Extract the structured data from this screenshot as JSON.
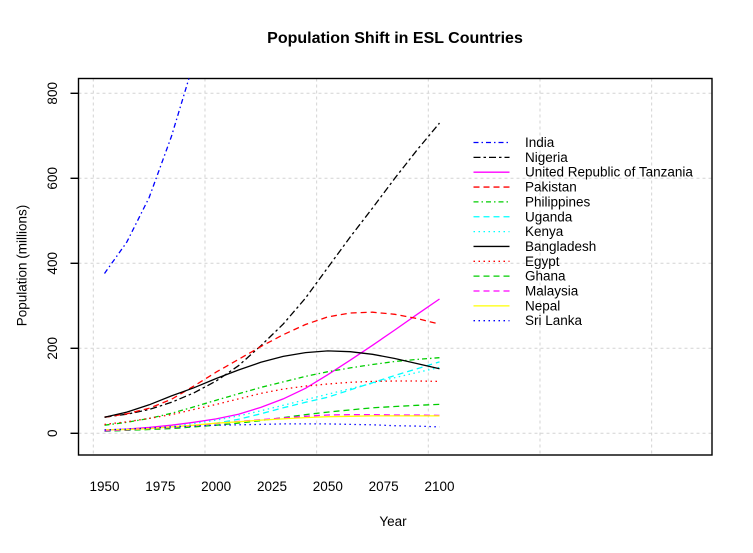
{
  "chart_data": {
    "type": "line",
    "title": "Population Shift in ESL Countries",
    "xlabel": "Year",
    "ylabel": "Population (millions)",
    "x_ticks": [
      1950,
      1975,
      2000,
      2025,
      2050,
      2075,
      2100
    ],
    "y_ticks": [
      0,
      200,
      400,
      600,
      800
    ],
    "xlim": [
      1950,
      2100
    ],
    "ylim": [
      0,
      830
    ],
    "grid": "lightgray-dashed",
    "legend_position": "right",
    "colors": {
      "blue": "#0000ff",
      "black": "#000000",
      "magenta": "#ff00ff",
      "red": "#ff0000",
      "green": "#00cd00",
      "cyan": "#00ffff",
      "yellow": "#ffff00"
    },
    "years": [
      1950,
      1960,
      1970,
      1980,
      1990,
      2000,
      2010,
      2020,
      2030,
      2040,
      2050,
      2060,
      2070,
      2080,
      2090,
      2100
    ],
    "series": [
      {
        "name": "India",
        "color": "#0000ff",
        "linetype": "dotdash",
        "values": [
          376,
          450,
          555,
          699,
          873,
          null,
          null,
          null,
          null,
          null,
          null,
          null,
          null,
          null,
          null,
          null
        ],
        "note": "line exits top of plot (~835M) around 1988"
      },
      {
        "name": "Nigeria",
        "color": "#000000",
        "linetype": "twodash",
        "values": [
          38,
          45,
          56,
          73,
          95,
          123,
          159,
          206,
          257,
          318,
          390,
          462,
          530,
          600,
          667,
          730
        ]
      },
      {
        "name": "United Republic of Tanzania",
        "color": "#ff00ff",
        "linetype": "solid",
        "values": [
          8,
          10,
          14,
          19,
          26,
          34,
          45,
          61,
          81,
          106,
          138,
          172,
          207,
          243,
          280,
          316
        ]
      },
      {
        "name": "Pakistan",
        "color": "#ff0000",
        "linetype": "dashed",
        "values": [
          38,
          46,
          59,
          80,
          111,
          144,
          174,
          204,
          232,
          256,
          274,
          283,
          285,
          280,
          270,
          257
        ]
      },
      {
        "name": "Philippines",
        "color": "#00cd00",
        "linetype": "dotdash",
        "values": [
          19,
          26,
          35,
          47,
          62,
          78,
          93,
          108,
          121,
          134,
          145,
          154,
          162,
          169,
          174,
          178
        ]
      },
      {
        "name": "Uganda",
        "color": "#00ffff",
        "linetype": "dashed",
        "values": [
          5,
          7,
          10,
          13,
          18,
          24,
          33,
          46,
          60,
          73,
          85,
          102,
          119,
          136,
          152,
          168
        ]
      },
      {
        "name": "Kenya",
        "color": "#00ffff",
        "linetype": "dotted",
        "values": [
          6,
          8,
          11,
          16,
          23,
          31,
          41,
          53,
          66,
          79,
          92,
          105,
          118,
          131,
          143,
          155
        ]
      },
      {
        "name": "Bangladesh",
        "color": "#000000",
        "linetype": "solid",
        "values": [
          38,
          50,
          67,
          88,
          107,
          129,
          149,
          167,
          181,
          190,
          194,
          192,
          186,
          176,
          164,
          152
        ]
      },
      {
        "name": "Egypt",
        "color": "#ff0000",
        "linetype": "dotted",
        "values": [
          21,
          27,
          35,
          44,
          56,
          68,
          81,
          94,
          104,
          111,
          116,
          120,
          122,
          123,
          123,
          122
        ]
      },
      {
        "name": "Ghana",
        "color": "#00cd00",
        "linetype": "dashed",
        "values": [
          5,
          7,
          9,
          11,
          15,
          19,
          24,
          30,
          37,
          44,
          50,
          55,
          60,
          63,
          66,
          68
        ]
      },
      {
        "name": "Malaysia",
        "color": "#ff00ff",
        "linetype": "dashed",
        "values": [
          6,
          8,
          11,
          14,
          18,
          23,
          28,
          32,
          36,
          40,
          43,
          44,
          44,
          43,
          43,
          42
        ]
      },
      {
        "name": "Nepal",
        "color": "#ffff00",
        "linetype": "solid",
        "values": [
          8,
          9,
          11,
          15,
          19,
          24,
          27,
          31,
          34,
          37,
          39,
          40,
          41,
          41,
          41,
          41
        ]
      },
      {
        "name": "Sri Lanka",
        "color": "#0000ff",
        "linetype": "dotted",
        "values": [
          8,
          10,
          12,
          15,
          17,
          19,
          20,
          21,
          22,
          22,
          22,
          21,
          20,
          18,
          17,
          15
        ]
      }
    ]
  }
}
